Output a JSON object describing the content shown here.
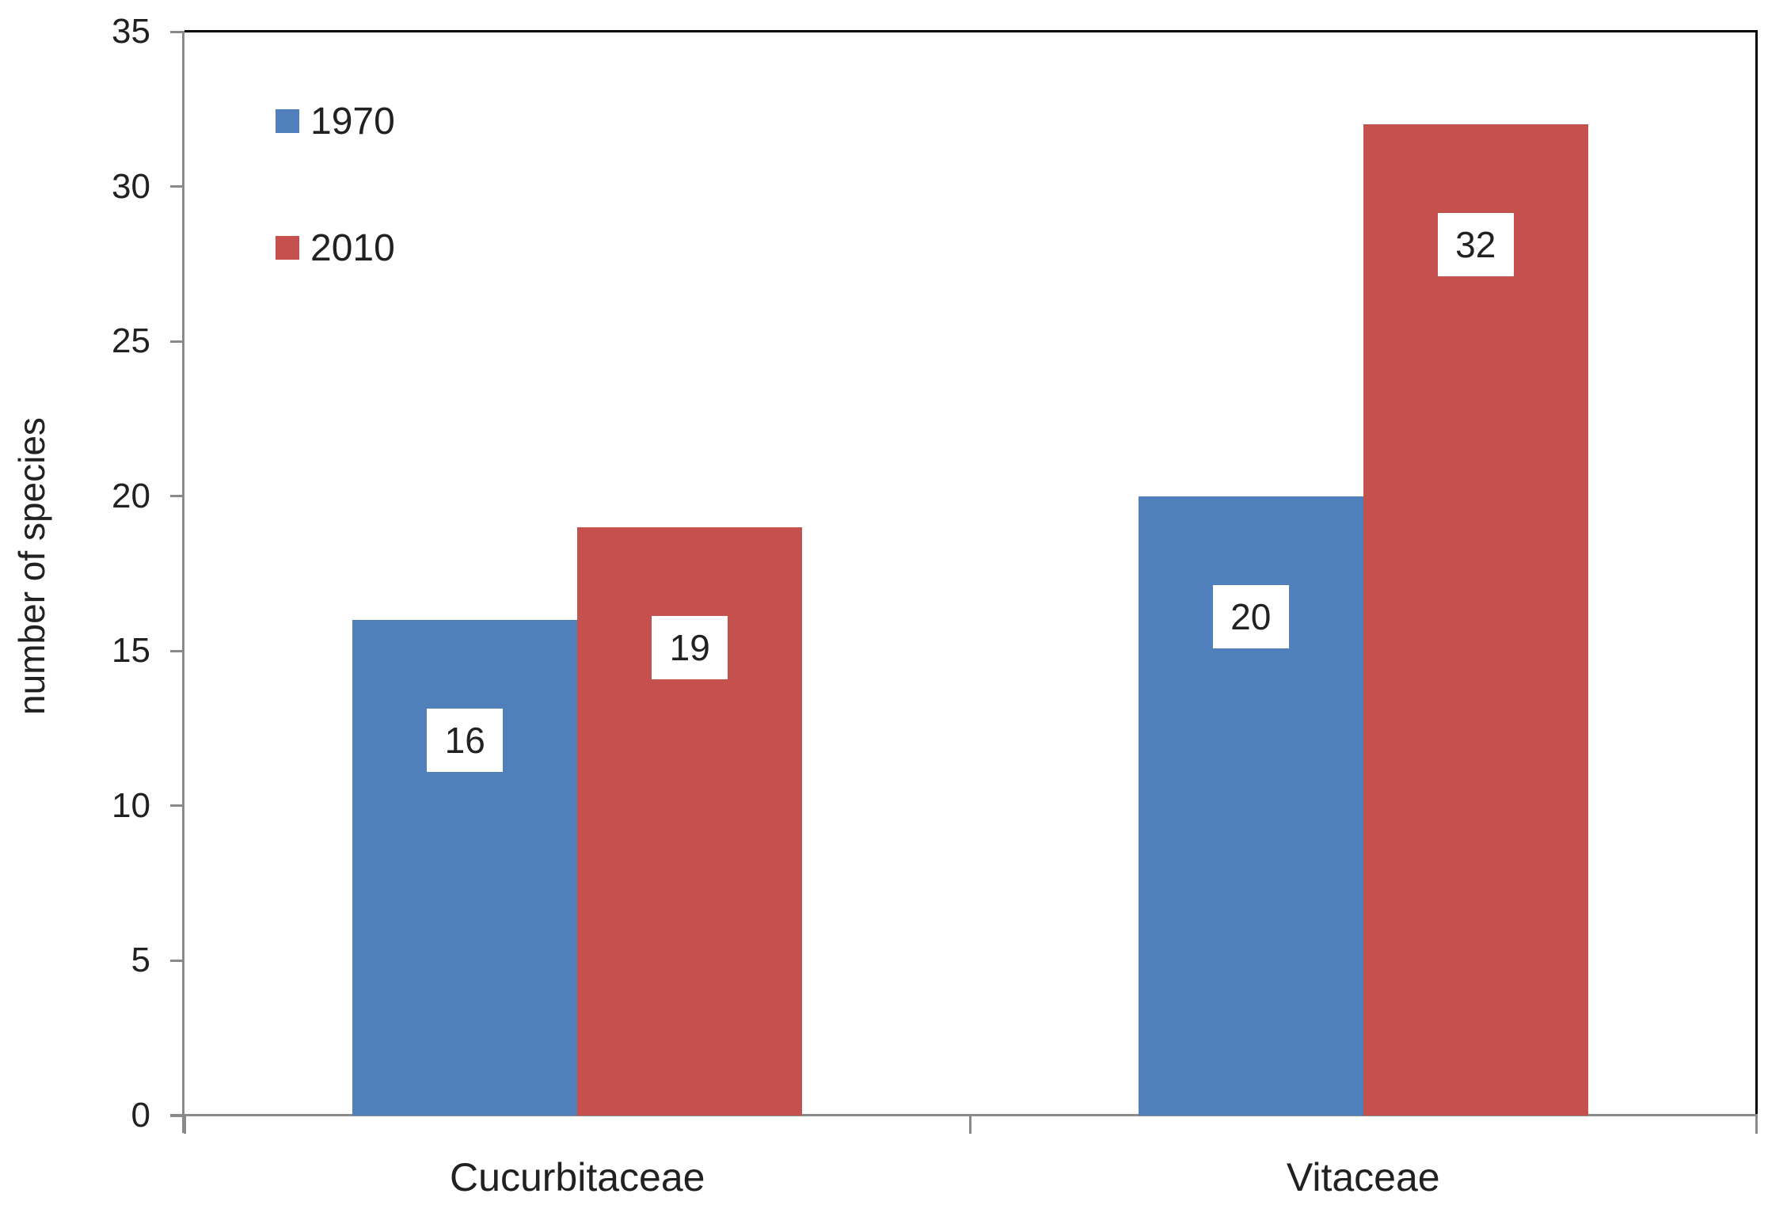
{
  "chart_data": {
    "type": "bar",
    "title": "",
    "categories": [
      "Cucurbitaceae",
      "Vitaceae"
    ],
    "series": [
      {
        "name": "1970",
        "color": "#4F80BB",
        "values": [
          16,
          20
        ]
      },
      {
        "name": "2010",
        "color": "#C4514D",
        "values": [
          19,
          32
        ]
      }
    ],
    "value_labels": [
      {
        "category": "Cucurbitaceae",
        "series": "1970",
        "label": "16"
      },
      {
        "category": "Cucurbitaceae",
        "series": "2010",
        "label": "19"
      },
      {
        "category": "Vitaceae",
        "series": "1970",
        "label": "20"
      },
      {
        "category": "Vitaceae",
        "series": "2010",
        "label": "32"
      }
    ],
    "xlabel": "",
    "ylabel": "number of species",
    "ylim": [
      0,
      35
    ],
    "yticks": [
      0,
      5,
      10,
      15,
      20,
      25,
      30,
      35
    ],
    "grid": false,
    "legend_position": "top-left-inside",
    "colors": {
      "axis": "#8A8A8A",
      "frame": "#000000",
      "text": "#212121",
      "value_label_bg": "#FFFFFF",
      "background": "#FFFFFF"
    }
  }
}
